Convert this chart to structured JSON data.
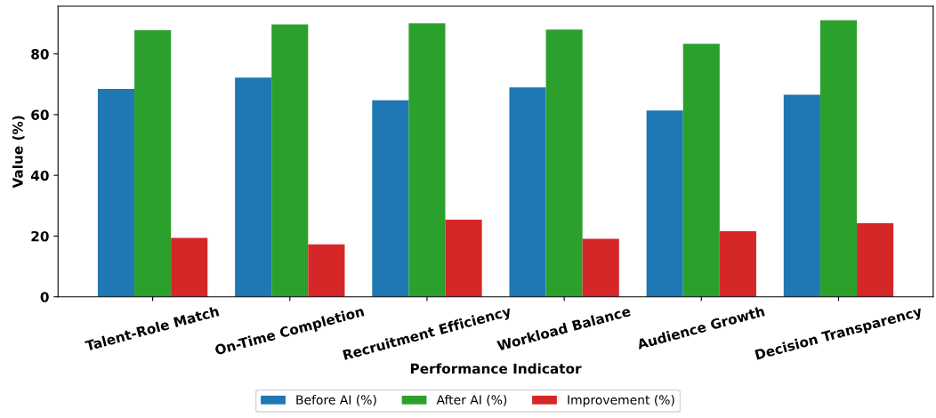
{
  "chart_data": {
    "type": "bar",
    "xlabel": "Performance Indicator",
    "ylabel": "Value (%)",
    "categories": [
      "Talent-Role Match",
      "On-Time Completion",
      "Recruitment Efficiency",
      "Workload Balance",
      "Audience Growth",
      "Decision Transparency"
    ],
    "series": [
      {
        "name": "Before AI (%)",
        "color": "#1f77b4",
        "values": [
          68.5,
          72.2,
          64.7,
          69.0,
          61.4,
          66.6
        ]
      },
      {
        "name": "After AI (%)",
        "color": "#2ca02c",
        "values": [
          87.8,
          89.7,
          90.1,
          88.0,
          83.3,
          91.1
        ]
      },
      {
        "name": "Improvement (%)",
        "color": "#d62728",
        "values": [
          19.4,
          17.3,
          25.4,
          19.1,
          21.6,
          24.2
        ]
      }
    ],
    "ylim": [
      0,
      95.7
    ],
    "yticks": [
      0,
      20,
      40,
      60,
      80
    ],
    "grid": false,
    "legend": "bottom"
  }
}
